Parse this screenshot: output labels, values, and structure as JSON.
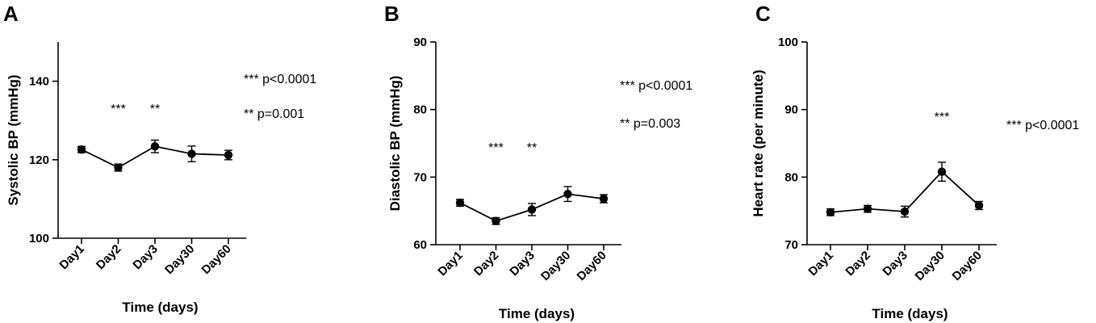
{
  "chart_data": [
    {
      "type": "line",
      "panel_label": "A",
      "categories": [
        "Day1",
        "Day2",
        "Day3",
        "Day30",
        "Day60"
      ],
      "xlabel": "Time (days)",
      "ylabel": "Systolic BP (mmHg)",
      "ylim": [
        100,
        150
      ],
      "yticks": [
        "100",
        "120",
        "140"
      ],
      "values": [
        122.6,
        118.0,
        123.4,
        121.5,
        121.2
      ],
      "errors": [
        0.8,
        0.9,
        1.6,
        2.0,
        1.2
      ],
      "significance": [
        "",
        "***",
        "**",
        "",
        ""
      ],
      "annotations": [
        "*** p<0.0001",
        "** p=0.001"
      ]
    },
    {
      "type": "line",
      "panel_label": "B",
      "categories": [
        "Day1",
        "Day2",
        "Day3",
        "Day30",
        "Day60"
      ],
      "xlabel": "Time (days)",
      "ylabel": "Diastolic BP (mmHg)",
      "ylim": [
        60,
        90
      ],
      "yticks": [
        "60",
        "70",
        "80",
        "90"
      ],
      "values": [
        66.2,
        63.5,
        65.2,
        67.5,
        66.8
      ],
      "errors": [
        0.5,
        0.5,
        0.9,
        1.1,
        0.6
      ],
      "significance": [
        "",
        "***",
        "**",
        "",
        ""
      ],
      "annotations": [
        "*** p<0.0001",
        "** p=0.003"
      ]
    },
    {
      "type": "line",
      "panel_label": "C",
      "categories": [
        "Day1",
        "Day2",
        "Day3",
        "Day30",
        "Day60"
      ],
      "xlabel": "Time (days)",
      "ylabel": "Heart rate (per minute)",
      "ylim": [
        70,
        100
      ],
      "yticks": [
        "70",
        "80",
        "90",
        "100"
      ],
      "values": [
        74.8,
        75.3,
        74.9,
        80.8,
        75.8
      ],
      "errors": [
        0.5,
        0.5,
        0.8,
        1.4,
        0.6
      ],
      "significance": [
        "",
        "",
        "",
        "***",
        ""
      ],
      "annotations": [
        "*** p<0.0001"
      ]
    }
  ]
}
